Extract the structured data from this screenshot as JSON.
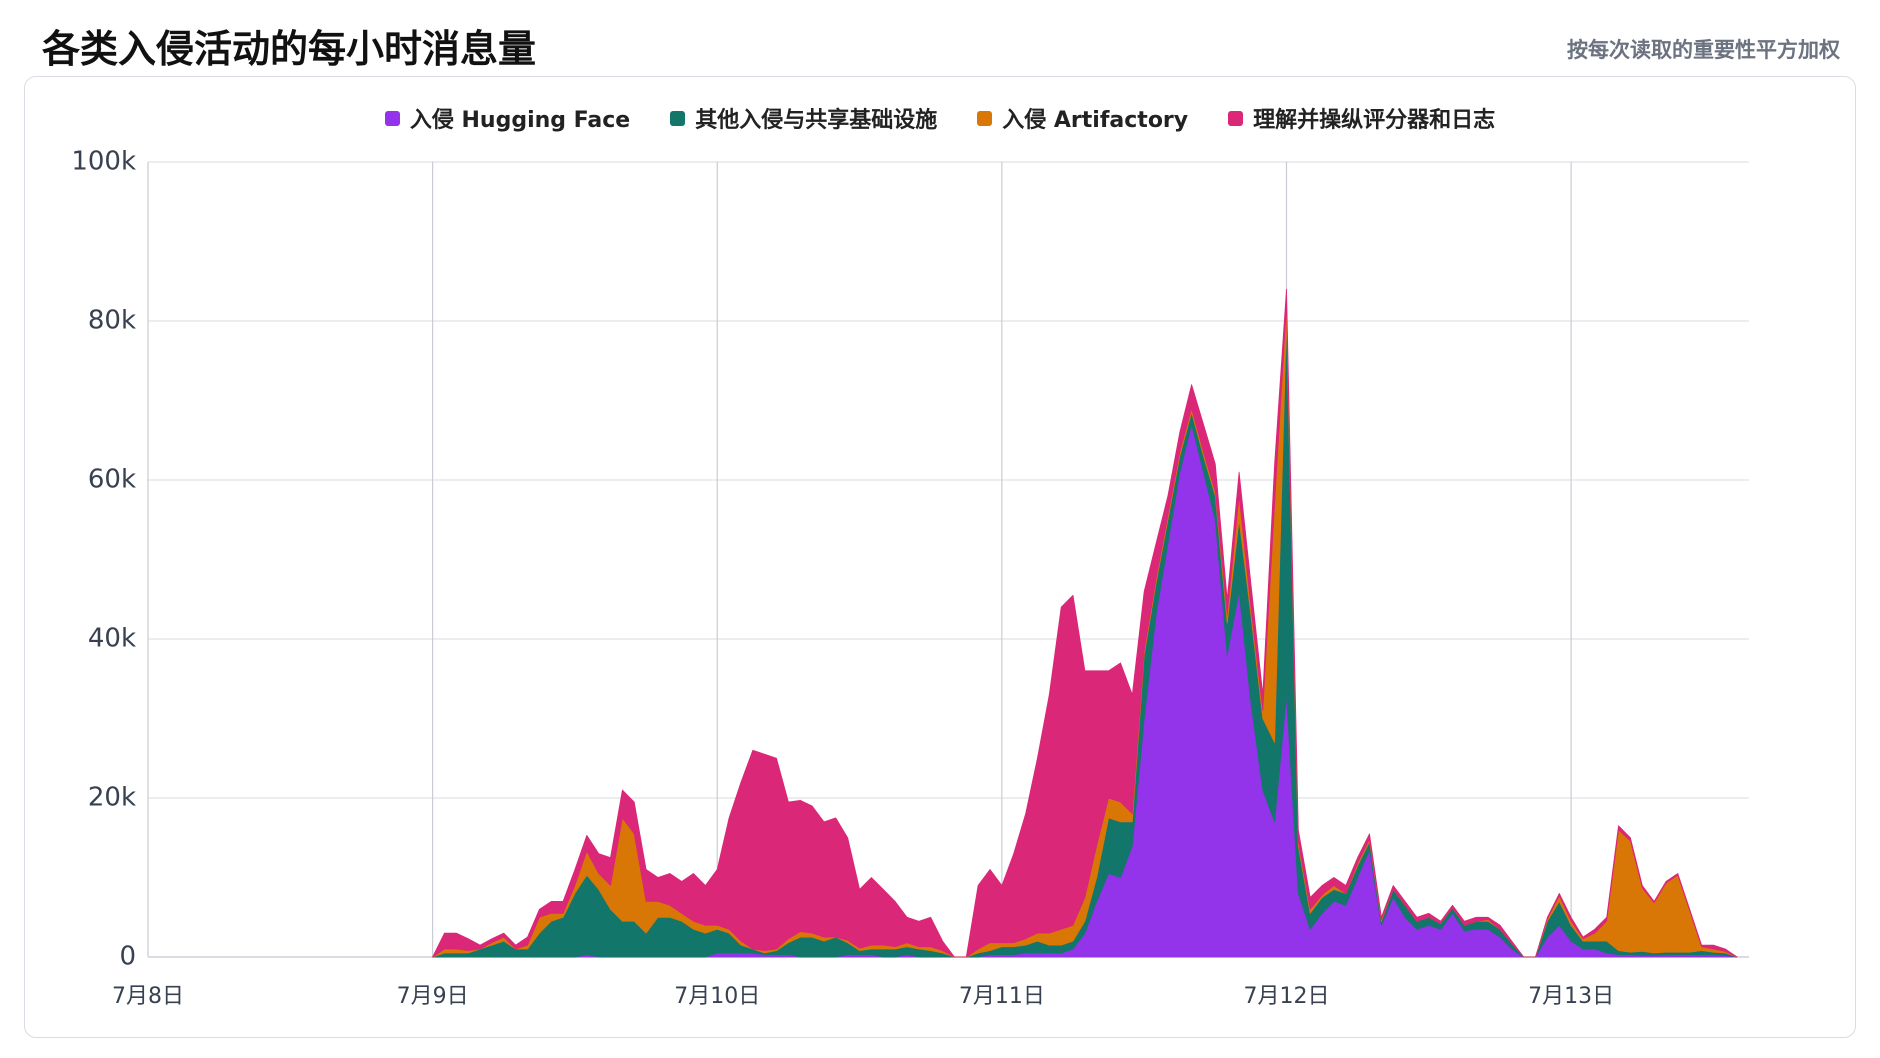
{
  "chart_data": {
    "type": "stacked_area",
    "title": "各类入侵活动的每小时消息量",
    "subtitle": "按每次读取的重要性平方加权",
    "legend": "top",
    "grid": true,
    "xlim": [
      0,
      135
    ],
    "xticks": [
      {
        "value": 0,
        "label": "7月8日"
      },
      {
        "value": 24,
        "label": "7月9日"
      },
      {
        "value": 48,
        "label": "7月10日"
      },
      {
        "value": 72,
        "label": "7月11日"
      },
      {
        "value": 96,
        "label": "7月12日"
      },
      {
        "value": 120,
        "label": "7月13日"
      }
    ],
    "ylim": [
      0,
      100000
    ],
    "yticks": [
      0,
      {
        "value": 20000,
        "label": "20k"
      },
      {
        "value": 40000,
        "label": "40k"
      },
      {
        "value": 60000,
        "label": "60k"
      },
      {
        "value": 80000,
        "label": "80k"
      },
      {
        "value": 100000,
        "label": "100k"
      }
    ],
    "x": [
      24,
      25,
      26,
      27,
      28,
      29,
      30,
      31,
      32,
      33,
      34,
      35,
      36,
      37,
      38,
      39,
      40,
      41,
      42,
      43,
      44,
      45,
      46,
      47,
      48,
      49,
      50,
      51,
      52,
      53,
      54,
      55,
      56,
      57,
      58,
      59,
      60,
      61,
      62,
      63,
      64,
      65,
      66,
      67,
      68,
      69,
      70,
      71,
      72,
      73,
      74,
      75,
      76,
      77,
      78,
      79,
      80,
      81,
      82,
      83,
      84,
      85,
      86,
      87,
      88,
      89,
      90,
      91,
      92,
      93,
      94,
      95,
      96,
      97,
      98,
      99,
      100,
      101,
      102,
      103,
      104,
      105,
      106,
      107,
      108,
      109,
      110,
      111,
      112,
      113,
      114,
      115,
      116,
      117,
      118,
      119,
      120,
      121,
      122,
      123,
      124,
      125,
      126,
      127,
      128,
      129,
      130,
      131,
      132,
      133,
      134
    ],
    "series": [
      {
        "name": "入侵 Hugging Face",
        "color": "#9333ea",
        "values": [
          0,
          0,
          0,
          0,
          0,
          0,
          0,
          0,
          0,
          0,
          0,
          0,
          0,
          300,
          0,
          0,
          0,
          0,
          0,
          0,
          0,
          0,
          0,
          0,
          500,
          500,
          500,
          500,
          300,
          300,
          300,
          0,
          0,
          0,
          0,
          300,
          300,
          300,
          0,
          0,
          300,
          0,
          0,
          0,
          0,
          0,
          0,
          300,
          300,
          300,
          500,
          500,
          500,
          500,
          1000,
          3000,
          7000,
          10500,
          10000,
          14000,
          30000,
          43000,
          52000,
          61000,
          67000,
          61000,
          55000,
          38000,
          46000,
          32000,
          21000,
          17000,
          33000,
          8000,
          3500,
          5500,
          7000,
          6500,
          10000,
          13500,
          4000,
          7500,
          5000,
          3500,
          4000,
          3500,
          5500,
          3300,
          3500,
          3500,
          2500,
          1000,
          0,
          0,
          2500,
          4000,
          2000,
          1000,
          1000,
          500,
          300,
          300,
          200,
          200,
          300,
          300,
          300,
          300,
          300,
          200,
          0
        ]
      },
      {
        "name": "其他入侵与共享基础设施",
        "color": "#12766a",
        "values": [
          0,
          500,
          500,
          500,
          1000,
          1500,
          2000,
          1000,
          1000,
          3000,
          4500,
          5000,
          8000,
          10000,
          8500,
          6000,
          4500,
          4500,
          3000,
          5000,
          5000,
          4500,
          3500,
          3000,
          3000,
          2500,
          1000,
          500,
          200,
          500,
          1500,
          2500,
          2500,
          2000,
          2500,
          1500,
          500,
          700,
          1000,
          1000,
          1000,
          1000,
          800,
          500,
          0,
          0,
          500,
          500,
          1000,
          1000,
          1000,
          1500,
          1000,
          1000,
          1000,
          1500,
          3000,
          7000,
          7000,
          3000,
          8000,
          4000,
          3000,
          2000,
          1500,
          2000,
          3000,
          4000,
          9000,
          11000,
          9000,
          10000,
          47000,
          6000,
          2000,
          2000,
          1500,
          1500,
          1500,
          1000,
          500,
          1000,
          1500,
          1000,
          1000,
          700,
          700,
          700,
          1000,
          1000,
          1000,
          700,
          0,
          0,
          2000,
          3000,
          2000,
          1000,
          1000,
          1500,
          500,
          300,
          500,
          300,
          300,
          300,
          300,
          500,
          300,
          300,
          0
        ]
      },
      {
        "name": "入侵 Artifactory",
        "color": "#d97706",
        "values": [
          0,
          500,
          500,
          300,
          0,
          300,
          500,
          0,
          500,
          2000,
          1000,
          500,
          1000,
          3000,
          2000,
          3000,
          13000,
          11000,
          4000,
          2000,
          1500,
          1000,
          1000,
          1000,
          500,
          500,
          500,
          0,
          300,
          200,
          500,
          700,
          500,
          500,
          0,
          300,
          300,
          500,
          500,
          300,
          500,
          300,
          500,
          300,
          0,
          0,
          500,
          1000,
          500,
          500,
          800,
          1000,
          1500,
          2000,
          2000,
          3000,
          4000,
          2500,
          2500,
          1000,
          500,
          500,
          500,
          500,
          500,
          500,
          500,
          1000,
          3000,
          1000,
          1000,
          30000,
          2000,
          500,
          500,
          300,
          500,
          0,
          300,
          300,
          200,
          0,
          0,
          0,
          0,
          0,
          0,
          0,
          0,
          200,
          0,
          0,
          0,
          0,
          300,
          700,
          500,
          300,
          1000,
          2500,
          15200,
          14000,
          8000,
          6300,
          8700,
          9700,
          5200,
          500,
          400,
          200,
          0
        ]
      },
      {
        "name": "理解并操纵评分器和日志",
        "color": "#db2777",
        "values": [
          0,
          2000,
          2000,
          1500,
          500,
          500,
          500,
          500,
          1000,
          1000,
          1500,
          1500,
          2000,
          2000,
          2500,
          3500,
          3500,
          4000,
          4000,
          3000,
          4000,
          4000,
          6000,
          5000,
          7000,
          14000,
          20000,
          25000,
          24700,
          24000,
          17200,
          16500,
          16000,
          14500,
          15000,
          12900,
          7400,
          8500,
          7000,
          5700,
          3200,
          3200,
          3700,
          1200,
          0,
          0,
          8000,
          9200,
          7200,
          11200,
          15700,
          22000,
          30000,
          40500,
          41500,
          28500,
          22000,
          16000,
          17500,
          15000,
          7500,
          4500,
          2500,
          2500,
          3000,
          3500,
          3500,
          2000,
          3000,
          3000,
          2000,
          5000,
          2000,
          1500,
          1500,
          1200,
          1000,
          1000,
          700,
          700,
          300,
          500,
          500,
          500,
          500,
          300,
          300,
          500,
          500,
          300,
          500,
          300,
          0,
          0,
          200,
          300,
          500,
          200,
          500,
          500,
          500,
          400,
          300,
          200,
          200,
          200,
          200,
          200,
          500,
          300,
          0
        ]
      }
    ]
  }
}
